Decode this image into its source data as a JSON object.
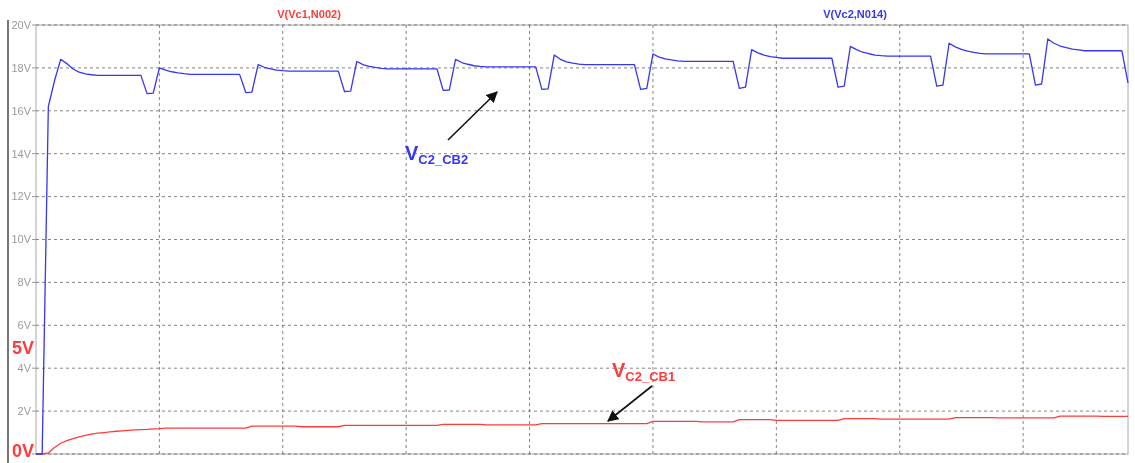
{
  "chart_data": {
    "type": "line",
    "categories": [
      null,
      null,
      null,
      null,
      null,
      null,
      null,
      null,
      null,
      null,
      null,
      null,
      null,
      null,
      null,
      null,
      null,
      null,
      null,
      null,
      null,
      null,
      null,
      null,
      null,
      null,
      null,
      null,
      null,
      null,
      null,
      null,
      null,
      null,
      null,
      null,
      null,
      null,
      null,
      null,
      null,
      null,
      null,
      null,
      null,
      null,
      null,
      null,
      null,
      null,
      null,
      null,
      null,
      null,
      null,
      null,
      null,
      null,
      null,
      null,
      null,
      null,
      null,
      null,
      null,
      null,
      null,
      null,
      null,
      null,
      null,
      null,
      null,
      null,
      null,
      null,
      null,
      null,
      null,
      null,
      null,
      null,
      null,
      null,
      null,
      null,
      null,
      null,
      null,
      null,
      null,
      null,
      null,
      null,
      null,
      null,
      null,
      null,
      null,
      null,
      null,
      null,
      null,
      null,
      null,
      null,
      null,
      null,
      null,
      null,
      null,
      null,
      null,
      null,
      null,
      null,
      null,
      null,
      null,
      null,
      null,
      null,
      null,
      null,
      null,
      null,
      null,
      null,
      null,
      null,
      null,
      null,
      null,
      null,
      null,
      null,
      null,
      null,
      null,
      null,
      null,
      null,
      null,
      null,
      null,
      null,
      null,
      null,
      null,
      null,
      null,
      null,
      null,
      null,
      null,
      null,
      null,
      null,
      null,
      null,
      null,
      null,
      null,
      null,
      null,
      null,
      null,
      null,
      null,
      null,
      null,
      null,
      null,
      null,
      null,
      null,
      null,
      null
    ],
    "series": [
      {
        "name": "V(Vc1,N002)",
        "color": "#ff3b3b",
        "values": [
          0,
          0,
          0.05,
          0.3,
          0.5,
          0.62,
          0.72,
          0.8,
          0.87,
          0.93,
          0.97,
          1.0,
          1.03,
          1.06,
          1.08,
          1.1,
          1.12,
          1.14,
          1.15,
          1.17,
          1.18,
          1.21,
          1.21,
          1.21,
          1.21,
          1.21,
          1.21,
          1.21,
          1.21,
          1.21,
          1.21,
          1.21,
          1.21,
          1.21,
          1.21,
          1.3,
          1.3,
          1.3,
          1.3,
          1.3,
          1.3,
          1.3,
          1.3,
          1.27,
          1.27,
          1.27,
          1.27,
          1.27,
          1.27,
          1.27,
          1.33,
          1.33,
          1.33,
          1.33,
          1.33,
          1.33,
          1.33,
          1.33,
          1.33,
          1.33,
          1.33,
          1.33,
          1.33,
          1.33,
          1.33,
          1.33,
          1.38,
          1.38,
          1.38,
          1.38,
          1.38,
          1.38,
          1.38,
          1.36,
          1.36,
          1.36,
          1.36,
          1.36,
          1.36,
          1.36,
          1.36,
          1.36,
          1.42,
          1.42,
          1.42,
          1.42,
          1.42,
          1.42,
          1.42,
          1.42,
          1.42,
          1.42,
          1.42,
          1.42,
          1.42,
          1.42,
          1.42,
          1.42,
          1.42,
          1.42,
          1.52,
          1.52,
          1.52,
          1.52,
          1.52,
          1.52,
          1.52,
          1.52,
          1.5,
          1.5,
          1.5,
          1.5,
          1.5,
          1.5,
          1.6,
          1.6,
          1.6,
          1.6,
          1.6,
          1.6,
          1.57,
          1.57,
          1.57,
          1.57,
          1.57,
          1.57,
          1.57,
          1.57,
          1.57,
          1.57,
          1.57,
          1.65,
          1.65,
          1.65,
          1.65,
          1.65,
          1.65,
          1.63,
          1.63,
          1.63,
          1.63,
          1.63,
          1.63,
          1.63,
          1.63,
          1.63,
          1.63,
          1.63,
          1.63,
          1.7,
          1.7,
          1.7,
          1.7,
          1.7,
          1.7,
          1.7,
          1.68,
          1.68,
          1.68,
          1.68,
          1.68,
          1.68,
          1.68,
          1.68,
          1.68,
          1.68,
          1.77,
          1.77,
          1.77,
          1.77,
          1.77,
          1.77,
          1.77,
          1.75,
          1.75,
          1.75,
          1.75,
          1.75
        ]
      },
      {
        "name": "V(Vc2,N014)",
        "color": "#3636f5",
        "values": [
          0,
          0,
          16.2,
          17.4,
          18.4,
          18.2,
          17.95,
          17.8,
          17.72,
          17.68,
          17.65,
          17.65,
          17.65,
          17.65,
          17.65,
          17.65,
          17.65,
          17.65,
          16.8,
          16.82,
          18.0,
          17.9,
          17.82,
          17.77,
          17.73,
          17.7,
          17.7,
          17.7,
          17.7,
          17.7,
          17.7,
          17.7,
          17.7,
          17.7,
          16.85,
          16.87,
          18.15,
          18.03,
          17.95,
          17.9,
          17.87,
          17.85,
          17.85,
          17.85,
          17.85,
          17.85,
          17.85,
          17.85,
          17.85,
          17.85,
          16.9,
          16.92,
          18.3,
          18.15,
          18.07,
          18.02,
          17.98,
          17.95,
          17.95,
          17.95,
          17.95,
          17.95,
          17.95,
          17.95,
          17.95,
          17.95,
          16.95,
          16.97,
          18.4,
          18.25,
          18.17,
          18.1,
          18.07,
          18.05,
          18.05,
          18.05,
          18.05,
          18.05,
          18.05,
          18.05,
          18.05,
          18.05,
          17.0,
          17.02,
          18.6,
          18.4,
          18.28,
          18.22,
          18.18,
          18.15,
          18.15,
          18.15,
          18.15,
          18.15,
          18.15,
          18.15,
          18.15,
          18.15,
          17.0,
          17.05,
          18.65,
          18.5,
          18.42,
          18.37,
          18.33,
          18.3,
          18.3,
          18.3,
          18.3,
          18.3,
          18.3,
          18.3,
          18.3,
          18.3,
          17.05,
          17.1,
          18.85,
          18.7,
          18.6,
          18.53,
          18.49,
          18.45,
          18.45,
          18.45,
          18.45,
          18.45,
          18.45,
          18.45,
          18.45,
          18.45,
          17.1,
          17.15,
          19.0,
          18.85,
          18.73,
          18.66,
          18.6,
          18.57,
          18.55,
          18.55,
          18.55,
          18.55,
          18.55,
          18.55,
          18.55,
          18.55,
          17.15,
          17.2,
          19.15,
          18.98,
          18.86,
          18.78,
          18.72,
          18.68,
          18.65,
          18.65,
          18.65,
          18.65,
          18.65,
          18.65,
          18.65,
          18.65,
          17.2,
          17.25,
          19.35,
          19.15,
          19.02,
          18.94,
          18.88,
          18.84,
          18.8,
          18.8,
          18.8,
          18.8,
          18.8,
          18.8,
          18.8,
          17.3
        ]
      }
    ],
    "ylim": [
      0,
      20
    ],
    "yticks": [
      {
        "value": 0,
        "label": null
      },
      {
        "value": 2,
        "label": "2V"
      },
      {
        "value": 4,
        "label": "4V"
      },
      {
        "value": 6,
        "label": "6V"
      },
      {
        "value": 8,
        "label": "8V"
      },
      {
        "value": 10,
        "label": "10V"
      },
      {
        "value": 12,
        "label": "12V"
      },
      {
        "value": 14,
        "label": "14V"
      },
      {
        "value": 16,
        "label": "16V"
      },
      {
        "value": 18,
        "label": "18V"
      },
      {
        "value": 20,
        "label": "20V"
      }
    ],
    "annotations": [
      "V$_{C2_CB2}$",
      "V$_{C2_CB1}$",
      "5V",
      "0V"
    ],
    "grid": true,
    "legend": "top",
    "marker": "none",
    "line_style": "solid"
  }
}
